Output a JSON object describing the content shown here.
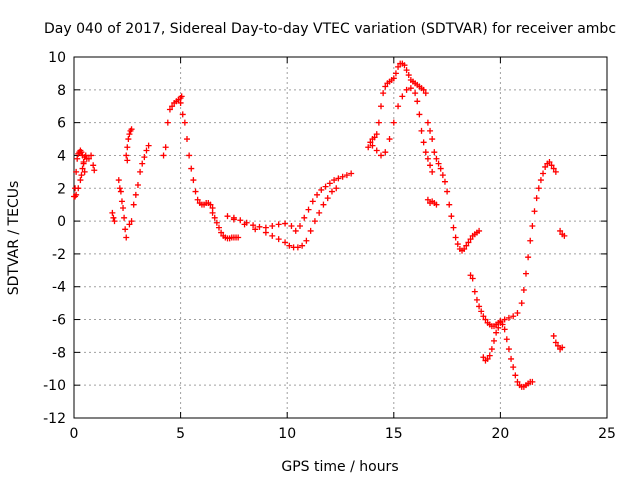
{
  "chart_data": {
    "type": "scatter",
    "title": "Day 040 of 2017, Sidereal Day-to-day VTEC variation (SDTVAR) for receiver ambc",
    "xlabel": "GPS time / hours",
    "ylabel": "SDTVAR / TECUs",
    "xlim": [
      0,
      25
    ],
    "ylim": [
      -12,
      10
    ],
    "x_ticks": [
      0,
      5,
      10,
      15,
      20,
      25
    ],
    "y_ticks": [
      -12,
      -10,
      -8,
      -6,
      -4,
      -2,
      0,
      2,
      4,
      6,
      8,
      10
    ],
    "grid": true,
    "marker": "+",
    "color": "#ff0000",
    "series": [
      {
        "x": [
          0.0,
          0.05,
          0.1,
          0.15,
          0.2,
          0.25,
          0.3,
          0.35,
          0.4,
          0.45,
          0.5
        ],
        "y": [
          1.5,
          2.0,
          3.0,
          3.8,
          4.1,
          4.2,
          4.3,
          4.2,
          4.0,
          3.5,
          3.0
        ]
      },
      {
        "x": [
          0.05,
          0.1,
          0.2,
          0.3,
          0.35,
          0.4,
          0.45,
          0.5,
          0.55,
          0.6
        ],
        "y": [
          1.5,
          1.6,
          2.0,
          2.5,
          2.8,
          3.2,
          3.6,
          3.9,
          4.0,
          3.8
        ]
      },
      {
        "x": [
          0.7,
          0.8,
          0.9,
          0.95
        ],
        "y": [
          3.8,
          4.0,
          3.4,
          3.1
        ]
      },
      {
        "x": [
          1.8,
          1.85,
          1.9
        ],
        "y": [
          0.5,
          0.2,
          0.0
        ]
      },
      {
        "x": [
          2.1,
          2.15,
          2.2,
          2.25,
          2.3,
          2.35,
          2.4,
          2.45,
          2.5
        ],
        "y": [
          2.5,
          2.0,
          1.8,
          1.2,
          0.8,
          0.2,
          -0.5,
          -1.0,
          3.7
        ]
      },
      {
        "x": [
          2.45,
          2.5,
          2.55,
          2.6,
          2.65,
          2.7
        ],
        "y": [
          4.0,
          4.5,
          5.0,
          5.3,
          5.5,
          5.6
        ]
      },
      {
        "x": [
          2.6,
          2.7,
          2.8,
          2.9,
          3.0,
          3.1,
          3.2,
          3.3,
          3.4,
          3.5
        ],
        "y": [
          -0.2,
          0.0,
          1.0,
          1.6,
          2.2,
          3.0,
          3.5,
          3.9,
          4.3,
          4.6
        ]
      },
      {
        "x": [
          4.2,
          4.3,
          4.4,
          4.5,
          4.6,
          4.7,
          4.8,
          4.9,
          5.0,
          5.05
        ],
        "y": [
          4.0,
          4.5,
          6.0,
          6.8,
          7.0,
          7.2,
          7.3,
          7.4,
          7.5,
          7.6
        ]
      },
      {
        "x": [
          5.0,
          5.1,
          5.2,
          5.3,
          5.4,
          5.5,
          5.6,
          5.7,
          5.8,
          5.9,
          6.0,
          6.1,
          6.2,
          6.3,
          6.4,
          6.5
        ],
        "y": [
          7.2,
          6.5,
          6.0,
          5.0,
          4.0,
          3.2,
          2.5,
          1.8,
          1.3,
          1.1,
          1.0,
          1.0,
          1.1,
          1.1,
          1.0,
          0.8
        ]
      },
      {
        "x": [
          6.5,
          6.6,
          6.7,
          6.8,
          6.9,
          7.0,
          7.1,
          7.2,
          7.3,
          7.4,
          7.5,
          7.6,
          7.7
        ],
        "y": [
          0.5,
          0.2,
          -0.1,
          -0.4,
          -0.7,
          -0.9,
          -1.0,
          -1.05,
          -1.05,
          -1.0,
          -1.0,
          -1.0,
          -1.0
        ]
      },
      {
        "x": [
          7.2,
          7.5,
          7.8,
          8.1,
          8.4,
          8.7,
          9.0,
          9.3,
          9.6,
          9.9,
          10.2,
          10.4,
          10.6,
          10.8,
          11.0,
          11.2,
          11.4,
          11.6,
          11.8,
          12.0,
          12.2,
          12.4,
          12.6,
          12.8,
          13.0
        ],
        "y": [
          0.3,
          0.2,
          0.05,
          -0.1,
          -0.25,
          -0.35,
          -0.4,
          -0.3,
          -0.2,
          -0.15,
          -0.3,
          -0.6,
          -0.3,
          0.2,
          0.7,
          1.2,
          1.6,
          1.9,
          2.1,
          2.3,
          2.5,
          2.6,
          2.7,
          2.8,
          2.9
        ]
      },
      {
        "x": [
          7.5,
          8.0,
          8.5,
          9.0,
          9.3,
          9.6,
          9.9,
          10.1,
          10.3,
          10.5,
          10.7,
          10.9,
          11.1,
          11.3,
          11.5,
          11.7,
          11.9,
          12.1,
          12.3
        ],
        "y": [
          0.1,
          -0.2,
          -0.5,
          -0.7,
          -0.9,
          -1.1,
          -1.3,
          -1.5,
          -1.6,
          -1.6,
          -1.5,
          -1.2,
          -0.6,
          0.0,
          0.5,
          1.0,
          1.4,
          1.8,
          2.0
        ]
      },
      {
        "x": [
          13.8,
          13.9,
          14.0,
          14.1,
          14.2,
          14.3,
          14.4,
          14.5,
          14.6,
          14.7,
          14.8,
          14.9,
          15.0,
          15.1,
          15.2,
          15.3,
          15.4,
          15.5,
          15.6,
          15.7,
          15.8,
          15.9,
          16.0,
          16.1,
          16.2,
          16.3,
          16.4,
          16.5
        ],
        "y": [
          4.5,
          4.8,
          5.0,
          5.1,
          5.3,
          6.0,
          7.0,
          7.8,
          8.2,
          8.4,
          8.5,
          8.6,
          8.7,
          9.0,
          9.4,
          9.6,
          9.6,
          9.5,
          9.2,
          8.9,
          8.6,
          8.5,
          8.4,
          8.3,
          8.2,
          8.1,
          8.0,
          7.8
        ]
      },
      {
        "x": [
          14.0,
          14.2,
          14.4,
          14.6,
          14.8,
          15.0,
          15.2,
          15.4,
          15.6,
          15.8,
          16.0,
          16.1,
          16.2,
          16.3,
          16.4,
          16.5,
          16.6,
          16.7,
          16.8
        ],
        "y": [
          4.6,
          4.3,
          4.0,
          4.2,
          5.0,
          6.0,
          7.0,
          7.6,
          8.0,
          8.1,
          7.8,
          7.3,
          6.5,
          5.5,
          4.8,
          4.2,
          3.8,
          3.4,
          3.0
        ]
      },
      {
        "x": [
          16.6,
          16.7,
          16.8,
          16.9,
          17.0,
          17.1,
          17.2,
          17.3,
          17.4,
          17.5,
          17.6,
          17.7,
          17.8,
          17.9,
          18.0,
          18.1,
          18.2,
          18.3,
          18.4,
          18.5,
          18.6,
          18.7,
          18.8,
          18.9,
          19.0
        ],
        "y": [
          6.0,
          5.5,
          5.0,
          4.2,
          3.8,
          3.5,
          3.2,
          2.8,
          2.4,
          1.8,
          1.0,
          0.3,
          -0.4,
          -1.0,
          -1.4,
          -1.7,
          -1.8,
          -1.7,
          -1.5,
          -1.3,
          -1.1,
          -0.9,
          -0.8,
          -0.7,
          -0.6
        ]
      },
      {
        "x": [
          16.6,
          16.7,
          16.8,
          16.9,
          17.0
        ],
        "y": [
          1.3,
          1.1,
          1.2,
          1.1,
          1.0
        ]
      },
      {
        "x": [
          18.6,
          18.7,
          18.8,
          18.9,
          19.0,
          19.1,
          19.2,
          19.3,
          19.4,
          19.5,
          19.6,
          19.7,
          19.8,
          19.9,
          20.0
        ],
        "y": [
          -3.3,
          -3.5,
          -4.3,
          -4.8,
          -5.2,
          -5.5,
          -5.8,
          -6.0,
          -6.2,
          -6.3,
          -6.4,
          -6.4,
          -6.3,
          -6.2,
          -6.1
        ]
      },
      {
        "x": [
          19.2,
          19.3,
          19.4,
          19.5,
          19.6,
          19.7,
          19.8,
          19.9,
          20.0,
          20.1,
          20.2,
          20.3,
          20.4,
          20.5,
          20.6,
          20.7,
          20.8,
          20.9,
          21.0,
          21.1,
          21.2,
          21.3,
          21.4,
          21.5
        ],
        "y": [
          -8.3,
          -8.5,
          -8.4,
          -8.2,
          -7.8,
          -7.3,
          -6.8,
          -6.5,
          -6.2,
          -6.3,
          -6.6,
          -7.2,
          -7.8,
          -8.4,
          -8.9,
          -9.4,
          -9.8,
          -10.0,
          -10.1,
          -10.1,
          -10.0,
          -9.9,
          -9.8,
          -9.8
        ]
      },
      {
        "x": [
          20.0,
          20.2,
          20.4,
          20.6,
          20.8,
          21.0,
          21.1,
          21.2,
          21.3,
          21.4,
          21.5,
          21.6,
          21.7,
          21.8,
          21.9,
          22.0,
          22.1,
          22.2,
          22.3,
          22.4,
          22.5,
          22.6
        ],
        "y": [
          -6.1,
          -6.0,
          -5.9,
          -5.8,
          -5.6,
          -5.0,
          -4.2,
          -3.2,
          -2.2,
          -1.2,
          -0.3,
          0.6,
          1.4,
          2.0,
          2.5,
          2.9,
          3.3,
          3.5,
          3.6,
          3.4,
          3.2,
          3.0
        ]
      },
      {
        "x": [
          22.5,
          22.6,
          22.7,
          22.8,
          22.9
        ],
        "y": [
          -7.0,
          -7.4,
          -7.6,
          -7.8,
          -7.7
        ]
      },
      {
        "x": [
          22.8,
          22.9,
          23.0
        ],
        "y": [
          -0.6,
          -0.8,
          -0.9
        ]
      }
    ]
  }
}
